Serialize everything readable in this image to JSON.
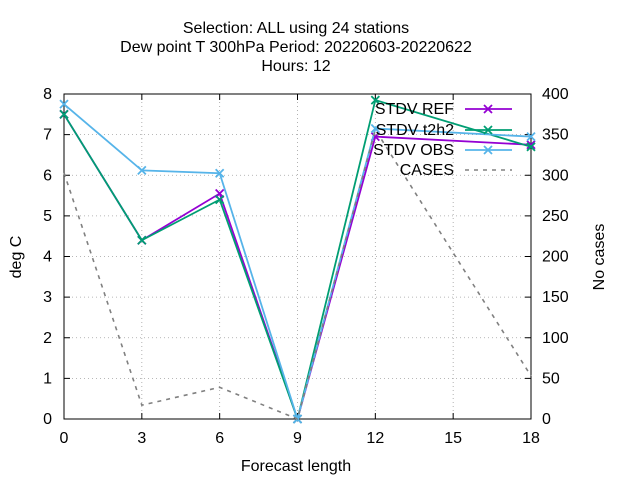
{
  "chart_data": {
    "type": "line",
    "title_lines": [
      "Selection: ALL using    24 stations",
      "Dew point T 300hPa   Period: 20220603-20220622",
      "Hours:  12"
    ],
    "xlabel": "Forecast length",
    "ylabel": "deg C",
    "y2label": "No cases",
    "xlim": [
      0,
      18
    ],
    "ylim": [
      0,
      8
    ],
    "y2lim": [
      0,
      400
    ],
    "xticks": [
      0,
      3,
      6,
      9,
      12,
      15,
      18
    ],
    "yticks": [
      0,
      1,
      2,
      3,
      4,
      5,
      6,
      7,
      8
    ],
    "y2ticks": [
      0,
      50,
      100,
      150,
      200,
      250,
      300,
      350,
      400
    ],
    "grid": true,
    "legend_position": "top-right",
    "x": [
      0,
      3,
      6,
      9,
      12,
      18
    ],
    "series": [
      {
        "name": "STDV REF",
        "axis": "y",
        "color": "#9400d3",
        "marker": "x",
        "dash": false,
        "values": [
          7.5,
          4.4,
          5.55,
          0.0,
          6.95,
          6.75
        ]
      },
      {
        "name": "STDV t2h2",
        "axis": "y",
        "color": "#009e73",
        "marker": "x",
        "dash": false,
        "values": [
          7.5,
          4.4,
          5.4,
          0.0,
          7.85,
          6.7
        ]
      },
      {
        "name": "STDV OBS",
        "axis": "y",
        "color": "#56b4e9",
        "marker": "x",
        "dash": false,
        "values": [
          7.75,
          6.12,
          6.05,
          0.0,
          7.15,
          6.95
        ]
      },
      {
        "name": "CASES",
        "axis": "y2",
        "color": "#808080",
        "marker": "none",
        "dash": true,
        "values": [
          303,
          17,
          39,
          0,
          356,
          53
        ]
      }
    ]
  }
}
